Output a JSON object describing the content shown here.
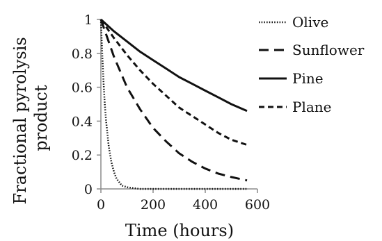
{
  "chart_data": {
    "type": "line",
    "xlabel": "Time (hours)",
    "ylabel_lines": [
      "Fractional pyrolysis",
      "product"
    ],
    "xlim": [
      0,
      600
    ],
    "ylim": [
      0,
      1
    ],
    "x_ticks": [
      "0",
      "200",
      "400",
      "600"
    ],
    "y_ticks": [
      "0",
      "0.2",
      "0.4",
      "0.6",
      "0.8",
      "1"
    ],
    "grid": false,
    "legend_position": "right",
    "series": [
      {
        "name": "Olive",
        "style": "dotted",
        "x": [
          0,
          5,
          10,
          15,
          20,
          30,
          40,
          50,
          60,
          70,
          80,
          100,
          150,
          200,
          300,
          400,
          560
        ],
        "y": [
          1.0,
          0.8,
          0.63,
          0.5,
          0.4,
          0.25,
          0.16,
          0.1,
          0.06,
          0.04,
          0.02,
          0.01,
          0.0,
          0.0,
          0.0,
          0.0,
          0.0
        ]
      },
      {
        "name": "Sunflower",
        "style": "dashed",
        "x": [
          0,
          50,
          100,
          150,
          200,
          250,
          300,
          350,
          400,
          450,
          500,
          560
        ],
        "y": [
          1.0,
          0.78,
          0.6,
          0.47,
          0.36,
          0.28,
          0.21,
          0.16,
          0.12,
          0.09,
          0.07,
          0.05
        ]
      },
      {
        "name": "Pine",
        "style": "solid",
        "x": [
          0,
          50,
          100,
          150,
          200,
          250,
          300,
          350,
          400,
          450,
          500,
          560
        ],
        "y": [
          1.0,
          0.93,
          0.87,
          0.81,
          0.76,
          0.71,
          0.66,
          0.62,
          0.58,
          0.54,
          0.5,
          0.46
        ]
      },
      {
        "name": "Plane",
        "style": "short-dashed",
        "x": [
          0,
          50,
          100,
          150,
          200,
          250,
          300,
          350,
          400,
          450,
          500,
          560
        ],
        "y": [
          1.0,
          0.89,
          0.79,
          0.7,
          0.62,
          0.55,
          0.48,
          0.43,
          0.38,
          0.33,
          0.29,
          0.26
        ]
      }
    ]
  }
}
